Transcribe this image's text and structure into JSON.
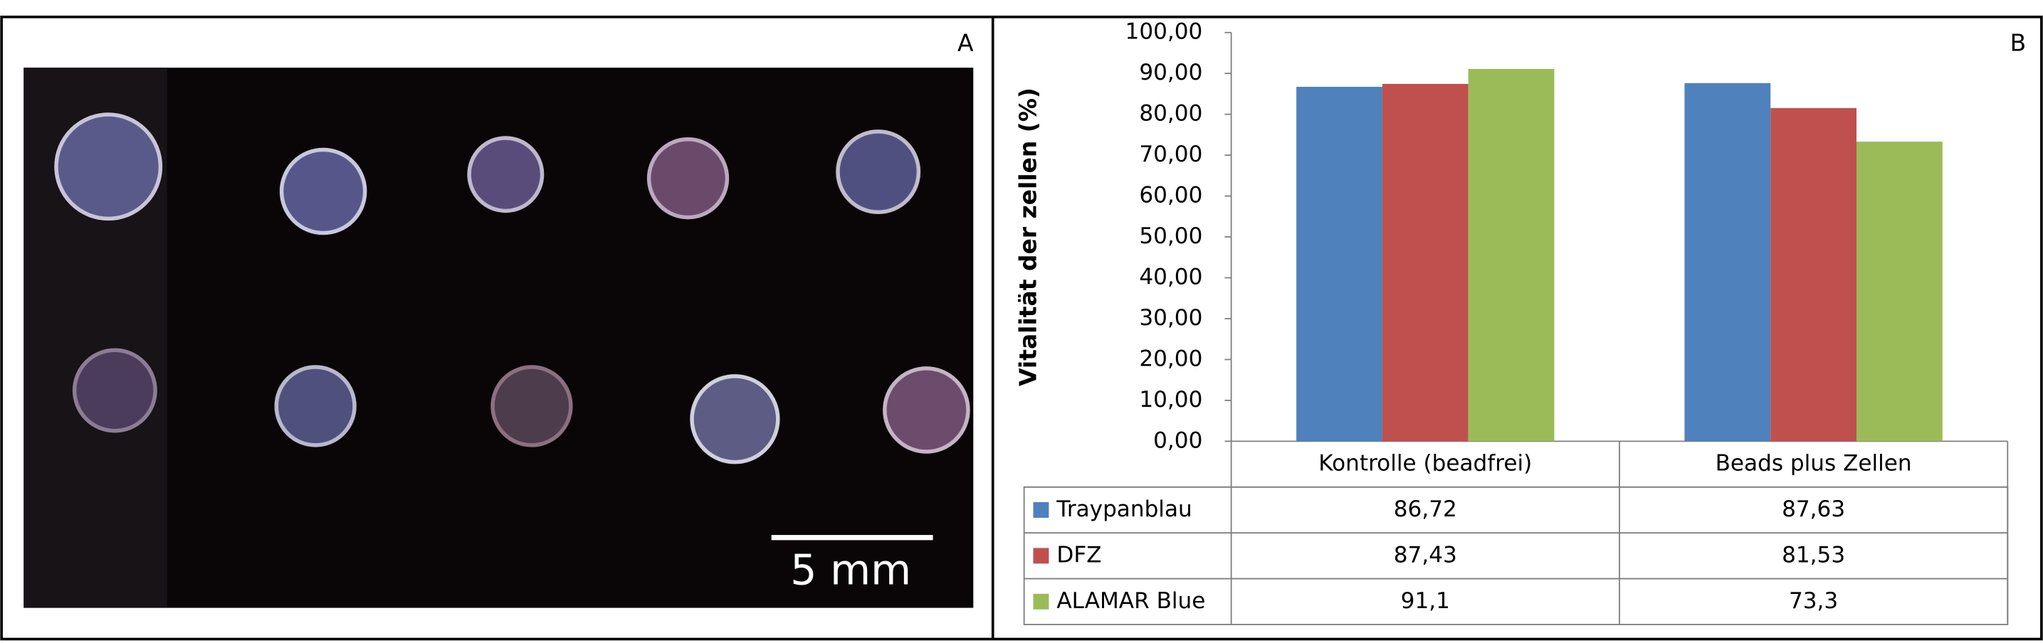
{
  "photo": {
    "label": "A",
    "scale_bar": "5 mm"
  },
  "chart_data": {
    "type": "bar",
    "label": "B",
    "ylabel": "Vitalität der zellen (%)",
    "categories": [
      "Kontrolle (beadfrei)",
      "Beads plus Zellen"
    ],
    "series": [
      {
        "name": "Traypanblau",
        "color": "#4f81bd",
        "values": [
          86.72,
          87.63
        ],
        "value_labels": [
          "86,72",
          "87,63"
        ]
      },
      {
        "name": "DFZ",
        "color": "#c0504d",
        "values": [
          87.43,
          81.53
        ],
        "value_labels": [
          "87,43",
          "81,53"
        ]
      },
      {
        "name": "ALAMAR Blue",
        "color": "#9bbb59",
        "values": [
          91.1,
          73.3
        ],
        "value_labels": [
          "91,1",
          "73,3"
        ]
      }
    ],
    "ylim": [
      0,
      100
    ],
    "yticks": [
      {
        "value": 0,
        "label": "0,00"
      },
      {
        "value": 10,
        "label": "10,00"
      },
      {
        "value": 20,
        "label": "20,00"
      },
      {
        "value": 30,
        "label": "30,00"
      },
      {
        "value": 40,
        "label": "40,00"
      },
      {
        "value": 50,
        "label": "50,00"
      },
      {
        "value": 60,
        "label": "60,00"
      },
      {
        "value": 70,
        "label": "70,00"
      },
      {
        "value": 80,
        "label": "80,00"
      },
      {
        "value": 90,
        "label": "90,00"
      },
      {
        "value": 100,
        "label": "100,00"
      }
    ],
    "grid": false
  }
}
